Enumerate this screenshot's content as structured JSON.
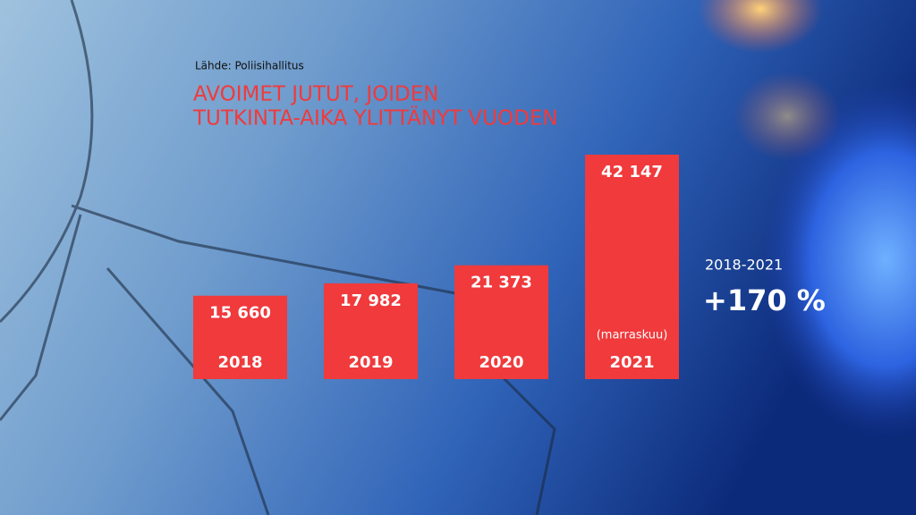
{
  "source": "Lähde: Poliisihallitus",
  "chart_data": {
    "type": "bar",
    "title": [
      "AVOIMET JUTUT, JOIDEN",
      "TUTKINTA-AIKA YLITTÄNYT VUODEN"
    ],
    "categories": [
      "2018",
      "2019",
      "2020",
      "2021"
    ],
    "values": [
      15660,
      17982,
      21373,
      42147
    ],
    "value_labels": [
      "15 660",
      "17 982",
      "21 373",
      "42 147"
    ],
    "bar_notes": [
      null,
      null,
      null,
      "(marraskuu)"
    ],
    "color": "#f03a3c"
  },
  "change": {
    "period": "2018-2021",
    "label": "+170 %"
  }
}
